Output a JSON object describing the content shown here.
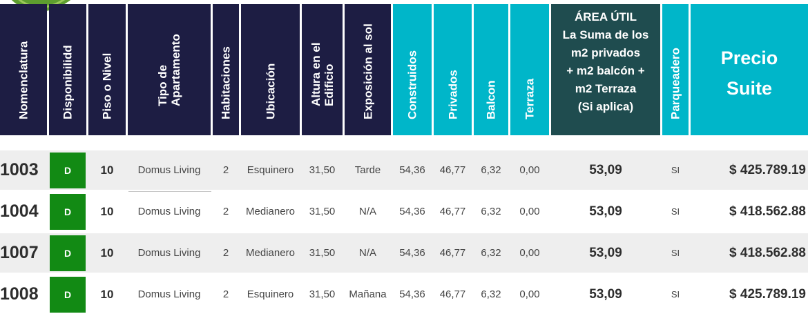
{
  "headers": {
    "nomenclatura": "Nomenclatura",
    "disponibilidad": "Disponibilidd",
    "piso": "Piso o Nivel",
    "tipo_line1": "Tipo de",
    "tipo_line2": "Apartamento",
    "habitaciones": "Habitaciones",
    "ubicacion": "Ubicación",
    "altura_line1": "Altura en el",
    "altura_line2": "Edificio",
    "exposicion": "Exposición al sol",
    "construidos": "Construidos",
    "privados": "Privados",
    "balcon": "Balcon",
    "terraza": "Terraza",
    "area_util": [
      "ÁREA ÚTIL",
      "La Suma de los",
      "m2 privados",
      "+ m2 balcón +",
      "m2 Terraza",
      "(Si aplica)"
    ],
    "parqueadero": "Parqueadero",
    "precio_line1": "Precio",
    "precio_line2": "Suite"
  },
  "rows": [
    {
      "nomenclatura": "1003",
      "disponibilidad": "D",
      "piso": "10",
      "tipo": "Domus Living",
      "habitaciones": "2",
      "ubicacion": "Esquinero",
      "altura": "31,50",
      "exposicion": "Tarde",
      "construidos": "54,36",
      "privados": "46,77",
      "balcon": "6,32",
      "terraza": "0,00",
      "area_util": "53,09",
      "parqueadero": "SI",
      "precio": "$ 425.789.19"
    },
    {
      "nomenclatura": "1004",
      "disponibilidad": "D",
      "piso": "10",
      "tipo": "Domus Living",
      "habitaciones": "2",
      "ubicacion": "Medianero",
      "altura": "31,50",
      "exposicion": "N/A",
      "construidos": "54,36",
      "privados": "46,77",
      "balcon": "6,32",
      "terraza": "0,00",
      "area_util": "53,09",
      "parqueadero": "SI",
      "precio": "$ 418.562.88"
    },
    {
      "nomenclatura": "1007",
      "disponibilidad": "D",
      "piso": "10",
      "tipo": "Domus Living",
      "habitaciones": "2",
      "ubicacion": "Medianero",
      "altura": "31,50",
      "exposicion": "N/A",
      "construidos": "54,36",
      "privados": "46,77",
      "balcon": "6,32",
      "terraza": "0,00",
      "area_util": "53,09",
      "parqueadero": "SI",
      "precio": "$ 418.562.88"
    },
    {
      "nomenclatura": "1008",
      "disponibilidad": "D",
      "piso": "10",
      "tipo": "Domus Living",
      "habitaciones": "2",
      "ubicacion": "Esquinero",
      "altura": "31,50",
      "exposicion": "Mañana",
      "construidos": "54,36",
      "privados": "46,77",
      "balcon": "6,32",
      "terraza": "0,00",
      "area_util": "53,09",
      "parqueadero": "SI",
      "precio": "$ 425.789.19"
    }
  ],
  "colors": {
    "header_navy": "#1d1d43",
    "header_cyan": "#00b6c9",
    "header_teal": "#1f4c4f",
    "badge_green": "#128a14",
    "row_shade": "#eeeeee"
  },
  "icons": {
    "corner_decoration": "leaf-icon"
  }
}
